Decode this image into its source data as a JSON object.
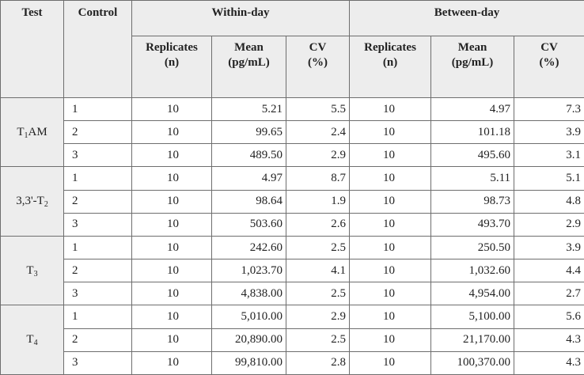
{
  "header": {
    "test": "Test",
    "control": "Control",
    "within_day": "Within-day",
    "between_day": "Between-day",
    "replicates_line1": "Replicates",
    "replicates_line2": "(n)",
    "mean_line1": "Mean",
    "mean_line2": "(pg/mL)",
    "cv_line1": "CV",
    "cv_line2": "(%)"
  },
  "groups": [
    {
      "label_main": "T",
      "label_sub": "1",
      "label_suffix": "AM",
      "rows": [
        {
          "control": "1",
          "w_n": "10",
          "w_mean": "5.21",
          "w_cv": "5.5",
          "b_n": "10",
          "b_mean": "4.97",
          "b_cv": "7.3"
        },
        {
          "control": "2",
          "w_n": "10",
          "w_mean": "99.65",
          "w_cv": "2.4",
          "b_n": "10",
          "b_mean": "101.18",
          "b_cv": "3.9"
        },
        {
          "control": "3",
          "w_n": "10",
          "w_mean": "489.50",
          "w_cv": "2.9",
          "b_n": "10",
          "b_mean": "495.60",
          "b_cv": "3.1"
        }
      ]
    },
    {
      "label_main": "3,3'-T",
      "label_sub": "2",
      "label_suffix": "",
      "rows": [
        {
          "control": "1",
          "w_n": "10",
          "w_mean": "4.97",
          "w_cv": "8.7",
          "b_n": "10",
          "b_mean": "5.11",
          "b_cv": "5.1"
        },
        {
          "control": "2",
          "w_n": "10",
          "w_mean": "98.64",
          "w_cv": "1.9",
          "b_n": "10",
          "b_mean": "98.73",
          "b_cv": "4.8"
        },
        {
          "control": "3",
          "w_n": "10",
          "w_mean": "503.60",
          "w_cv": "2.6",
          "b_n": "10",
          "b_mean": "493.70",
          "b_cv": "2.9"
        }
      ]
    },
    {
      "label_main": "T",
      "label_sub": "3",
      "label_suffix": "",
      "rows": [
        {
          "control": "1",
          "w_n": "10",
          "w_mean": "242.60",
          "w_cv": "2.5",
          "b_n": "10",
          "b_mean": "250.50",
          "b_cv": "3.9"
        },
        {
          "control": "2",
          "w_n": "10",
          "w_mean": "1,023.70",
          "w_cv": "4.1",
          "b_n": "10",
          "b_mean": "1,032.60",
          "b_cv": "4.4"
        },
        {
          "control": "3",
          "w_n": "10",
          "w_mean": "4,838.00",
          "w_cv": "2.5",
          "b_n": "10",
          "b_mean": "4,954.00",
          "b_cv": "2.7"
        }
      ]
    },
    {
      "label_main": "T",
      "label_sub": "4",
      "label_suffix": "",
      "rows": [
        {
          "control": "1",
          "w_n": "10",
          "w_mean": "5,010.00",
          "w_cv": "2.9",
          "b_n": "10",
          "b_mean": "5,100.00",
          "b_cv": "5.6"
        },
        {
          "control": "2",
          "w_n": "10",
          "w_mean": "20,890.00",
          "w_cv": "2.5",
          "b_n": "10",
          "b_mean": "21,170.00",
          "b_cv": "4.3"
        },
        {
          "control": "3",
          "w_n": "10",
          "w_mean": "99,810.00",
          "w_cv": "2.8",
          "b_n": "10",
          "b_mean": "100,370.00",
          "b_cv": "4.3"
        }
      ]
    }
  ]
}
